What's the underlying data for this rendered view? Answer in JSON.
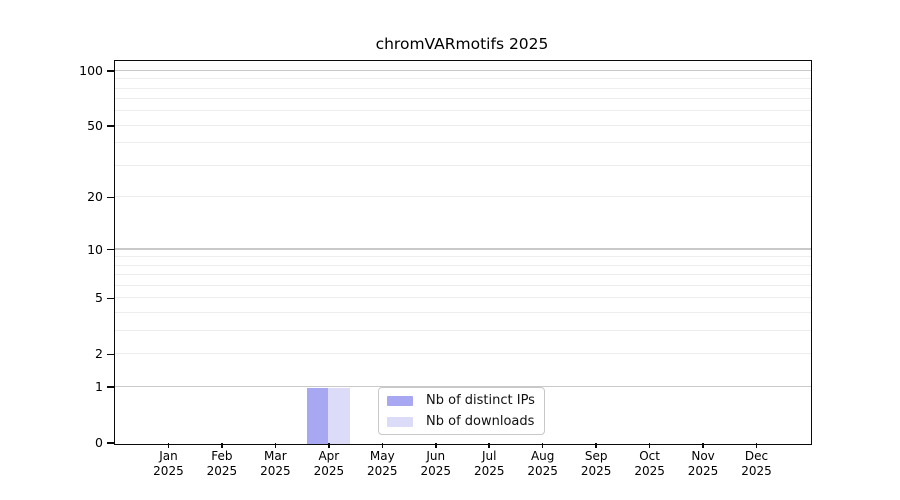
{
  "chart_data": {
    "type": "bar",
    "title": "chromVARmotifs 2025",
    "xlabel": "",
    "ylabel": "",
    "categories": [
      "Jan 2025",
      "Feb 2025",
      "Mar 2025",
      "Apr 2025",
      "May 2025",
      "Jun 2025",
      "Jul 2025",
      "Aug 2025",
      "Sep 2025",
      "Oct 2025",
      "Nov 2025",
      "Dec 2025"
    ],
    "series": [
      {
        "name": "Nb of distinct IPs",
        "color": "#a7a7f2",
        "values": [
          0,
          0,
          0,
          1,
          0,
          0,
          0,
          0,
          0,
          0,
          0,
          0
        ]
      },
      {
        "name": "Nb of downloads",
        "color": "#dcdcf8",
        "values": [
          0,
          0,
          0,
          1,
          0,
          0,
          0,
          0,
          0,
          0,
          0,
          0
        ]
      }
    ],
    "y_axis": {
      "scale": "log1p",
      "ylim": [
        0,
        113
      ],
      "ticks": [
        0,
        1,
        2,
        5,
        10,
        20,
        50,
        100
      ],
      "major_gridlines": [
        1,
        10,
        100
      ],
      "minor_gridlines": [
        2,
        3,
        4,
        5,
        6,
        7,
        8,
        9,
        20,
        30,
        40,
        50,
        60,
        70,
        80,
        90
      ],
      "major_gridline_color": "#c9c9c9",
      "minor_gridline_color": "#ededed"
    },
    "legend": {
      "position": "bottom-center"
    },
    "grid": "horizontal-only"
  }
}
